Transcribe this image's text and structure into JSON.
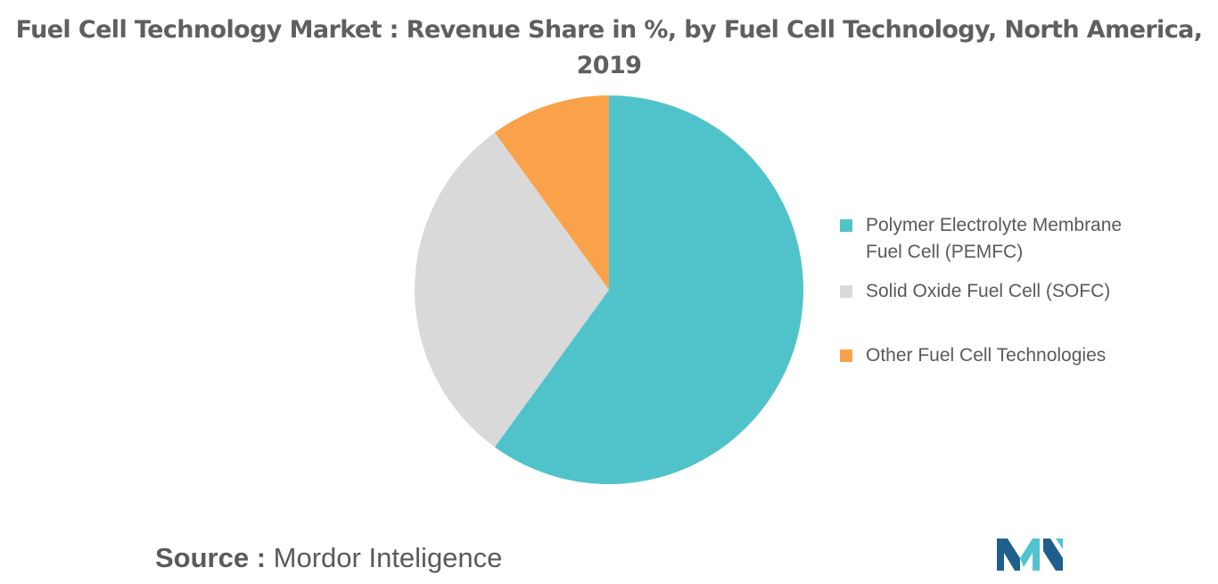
{
  "title": {
    "line1": "Fuel Cell Technology Market : Revenue Share in %, by Fuel Cell Technology, North America,",
    "line2": "2019"
  },
  "chart_data": {
    "type": "pie",
    "title": "Fuel Cell Technology Market : Revenue Share in %, by Fuel Cell Technology, North America, 2019",
    "start_angle_deg": 0,
    "direction": "clockwise",
    "legend_position": "right",
    "slices": [
      {
        "name": "Polymer Electrolyte Membrane Fuel Cell (PEMFC)",
        "value": 60,
        "color": "#4fc3c9"
      },
      {
        "name": "Solid Oxide Fuel Cell (SOFC)",
        "value": 30,
        "color": "#d9d9d9"
      },
      {
        "name": "Other Fuel Cell Technologies",
        "value": 10,
        "color": "#f9a24a"
      }
    ]
  },
  "legend": {
    "items": [
      {
        "label_line1": "Polymer Electrolyte Membrane",
        "label_line2": "Fuel Cell (PEMFC)",
        "color": "#4fc3c9"
      },
      {
        "label_line1": "Solid Oxide Fuel Cell (SOFC)",
        "label_line2": "",
        "color": "#d9d9d9"
      },
      {
        "label_line1": "Other Fuel Cell Technologies",
        "label_line2": "",
        "color": "#f9a24a"
      }
    ]
  },
  "source": {
    "label": "Source :",
    "value": "Mordor Inteligence"
  },
  "logo": {
    "icon": "mordor-intelligence-logo-icon",
    "color_dark": "#1f5f8b",
    "color_light": "#53c3cf"
  }
}
